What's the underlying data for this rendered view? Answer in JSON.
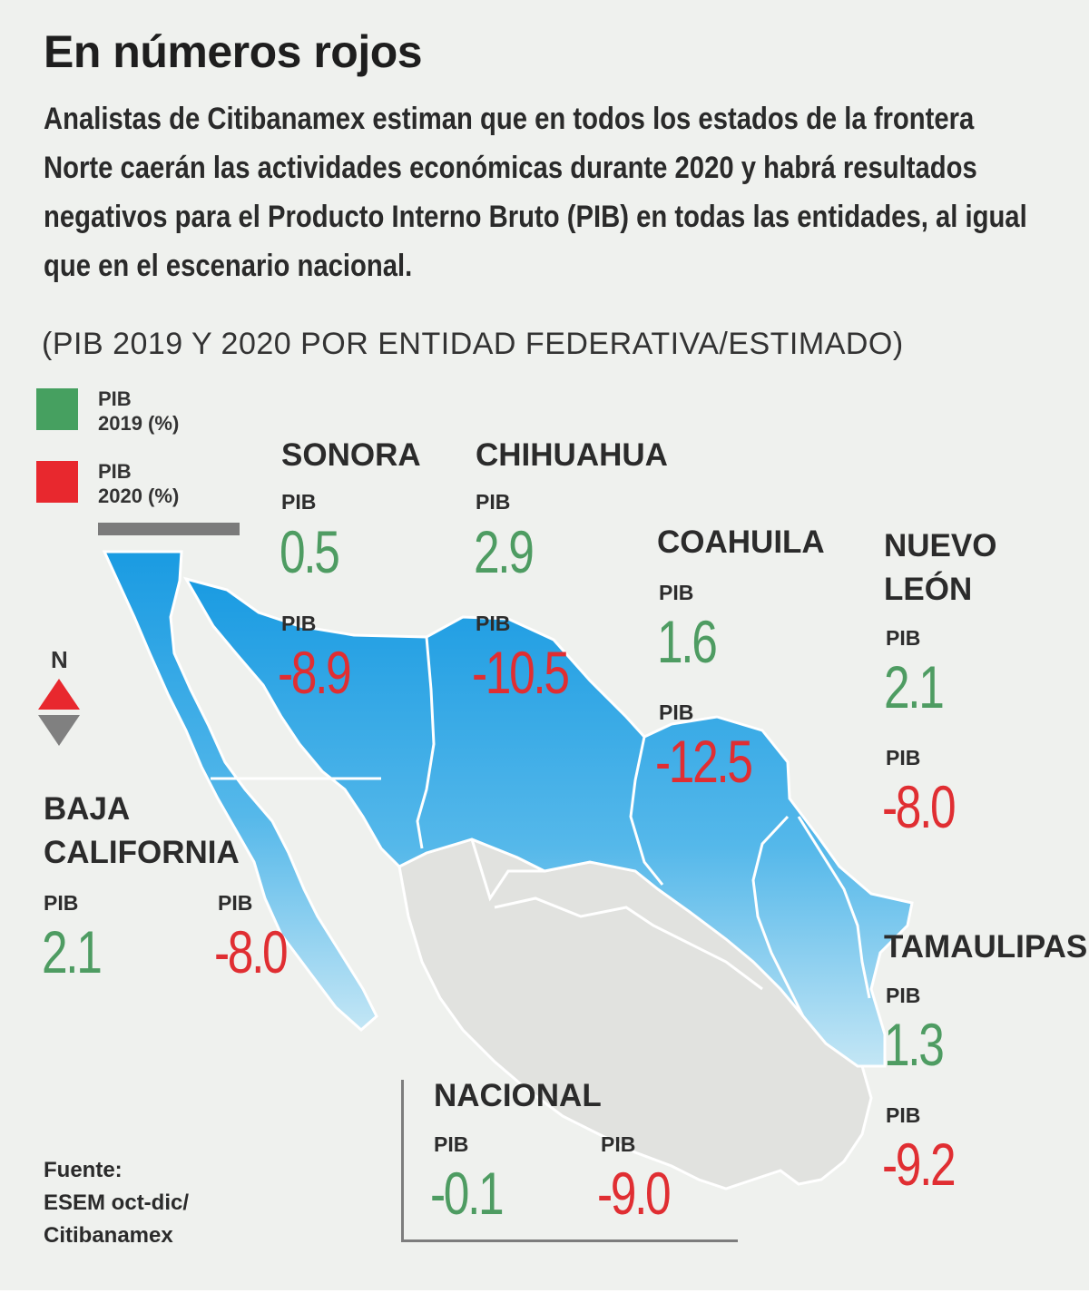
{
  "title": "En números rojos",
  "subtitle_lines": [
    "Analistas de Citibanamex estiman que en todos los estados de la frontera",
    "Norte caerán las actividades económicas durante 2020 y habrá resultados",
    "negativos para el Producto Interno Bruto (PIB) en todas las entidades, al igual",
    "que en el escenario nacional."
  ],
  "note": "(PIB 2019 Y 2020 POR ENTIDAD FEDERATIVA/ESTIMADO)",
  "legend": {
    "item_2019": {
      "line1": "PIB",
      "line2": "2019 (%)",
      "color": "#46a060"
    },
    "item_2020": {
      "line1": "PIB",
      "line2": "2020 (%)",
      "color": "#e8282e"
    }
  },
  "compass": {
    "label": "N",
    "north_color": "#e8282e",
    "south_color": "#808080"
  },
  "colors": {
    "positive": "#4e9c62",
    "negative": "#e02e32",
    "map_light": "#e1e2df",
    "border_blue_top": "#1a9be2",
    "border_blue_bottom": "#b8e0f2"
  },
  "pib_label": "PIB",
  "states": {
    "sonora": {
      "name": "SONORA",
      "pib_2019": "0.5",
      "pib_2020": "-8.9"
    },
    "chihuahua": {
      "name": "CHIHUAHUA",
      "pib_2019": "2.9",
      "pib_2020": "-10.5"
    },
    "coahuila": {
      "name": "COAHUILA",
      "pib_2019": "1.6",
      "pib_2020": "-12.5"
    },
    "nuevo_leon": {
      "name_line1": "NUEVO",
      "name_line2": "LEÓN",
      "pib_2019": "2.1",
      "pib_2020": "-8.0"
    },
    "baja_california": {
      "name_line1": "BAJA",
      "name_line2": "CALIFORNIA",
      "pib_2019": "2.1",
      "pib_2020": "-8.0"
    },
    "tamaulipas": {
      "name": "TAMAULIPAS",
      "pib_2019": "1.3",
      "pib_2020": "-9.2"
    },
    "nacional": {
      "name": "NACIONAL",
      "pib_2019": "-0.1",
      "pib_2020": "-9.0"
    }
  },
  "source": {
    "line1": "Fuente:",
    "line2": "ESEM oct-dic/",
    "line3": "Citibanamex"
  }
}
